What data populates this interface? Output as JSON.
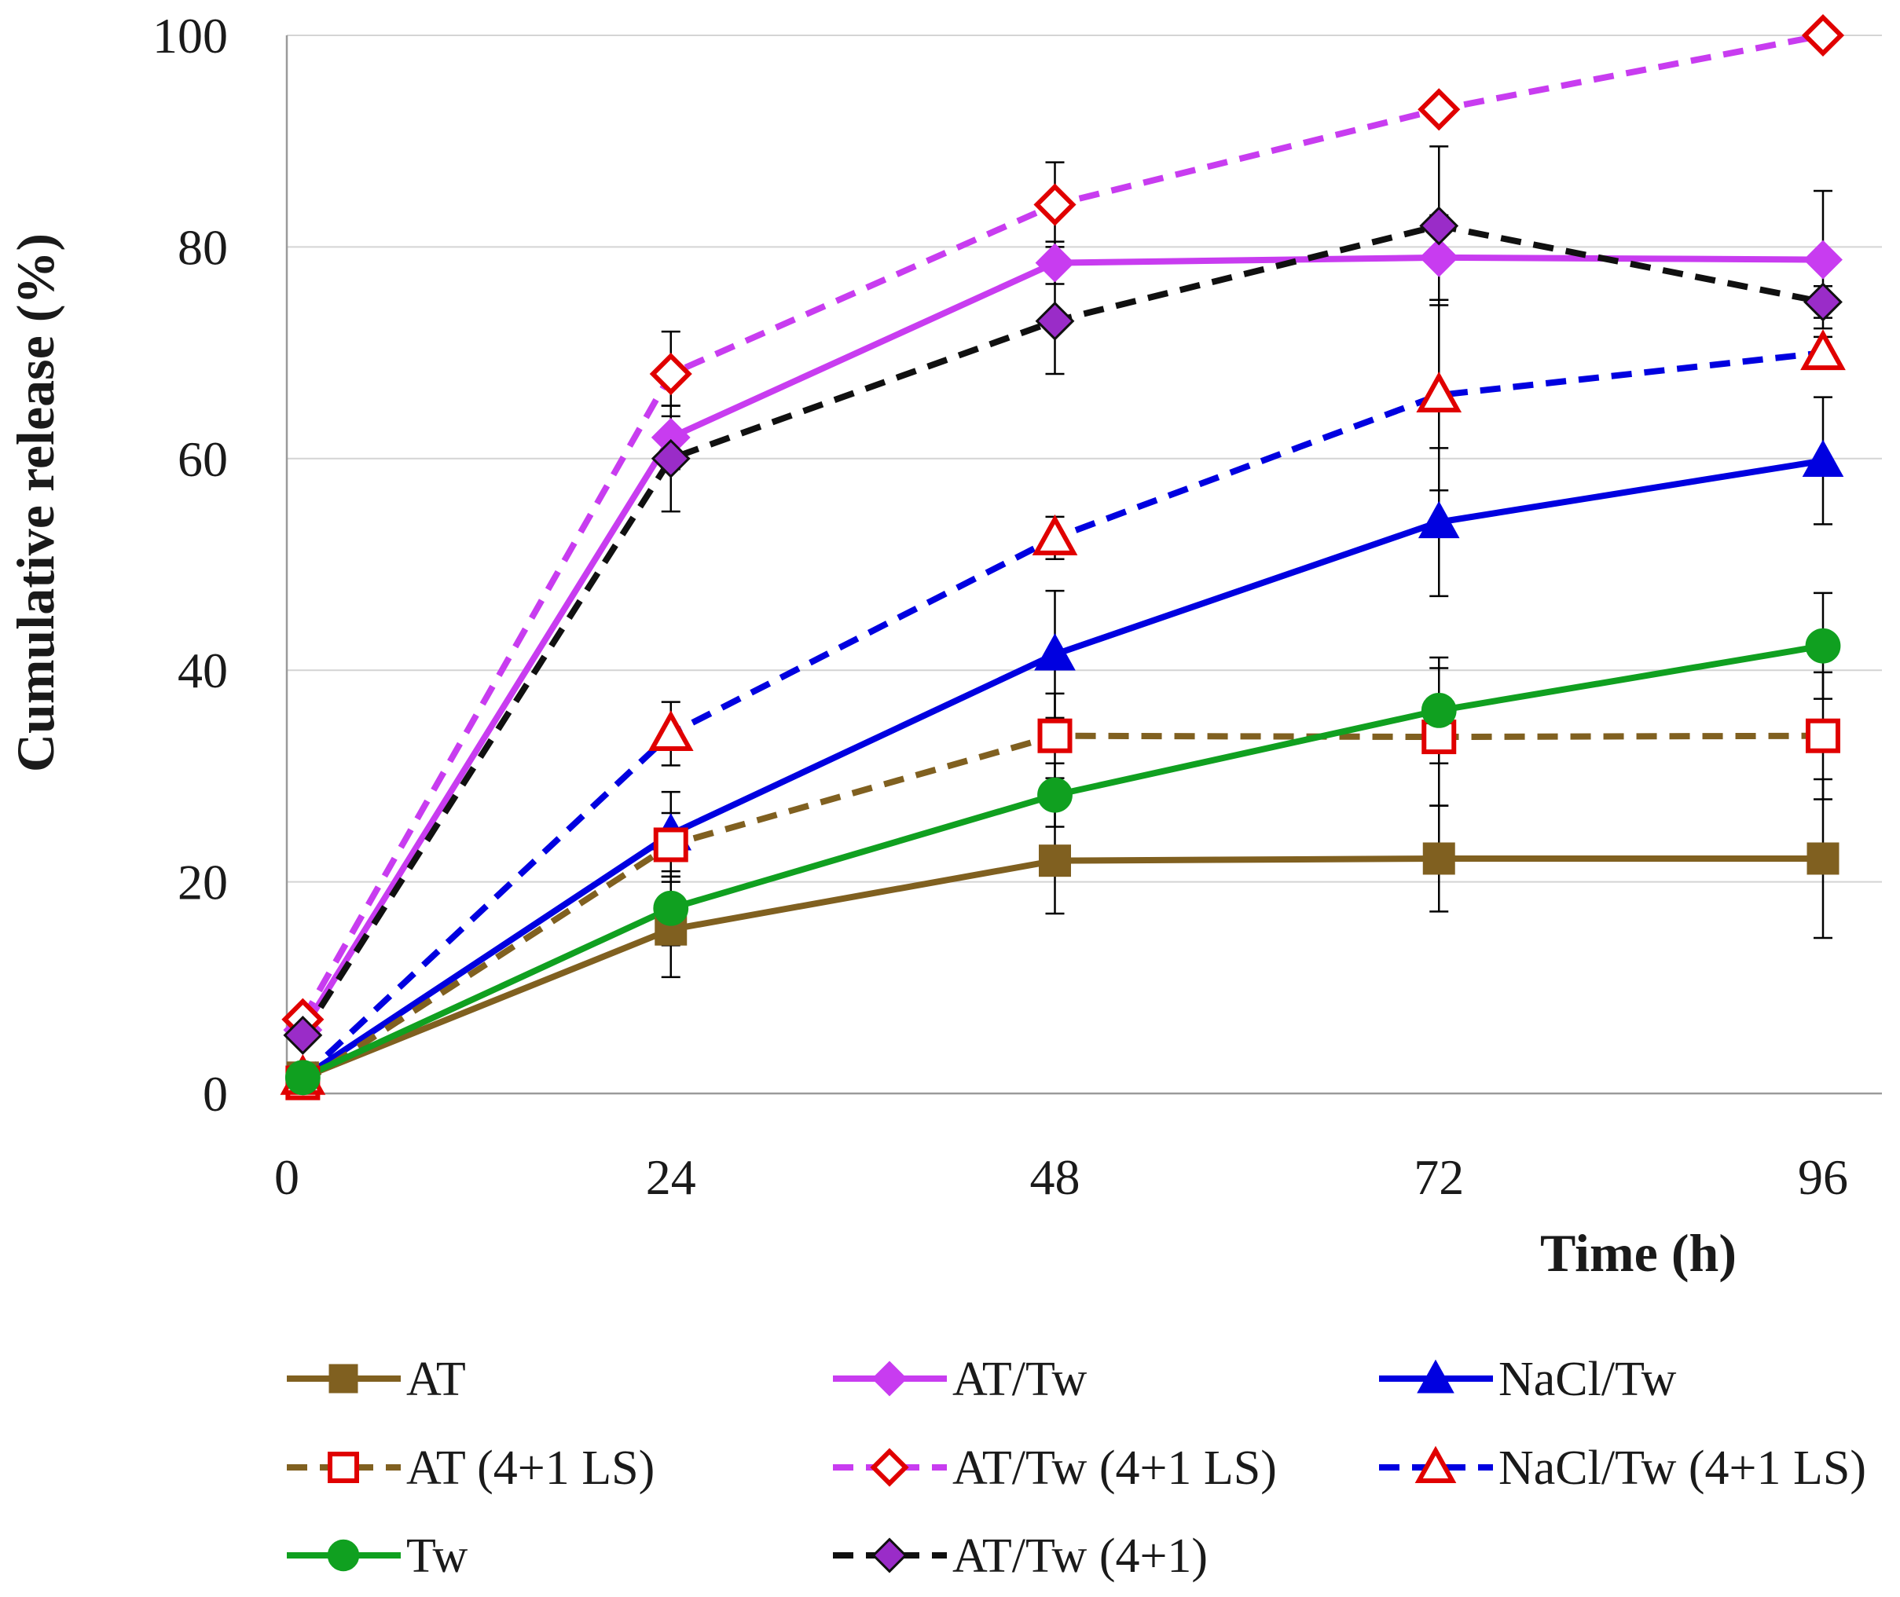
{
  "chart_data": {
    "type": "line",
    "title": "",
    "xlabel": "Time (h)",
    "ylabel": "Cumulative release (%)",
    "x": [
      1,
      24,
      48,
      72,
      96
    ],
    "x_ticks": [
      0,
      24,
      48,
      72,
      96
    ],
    "y_ticks": [
      0,
      20,
      40,
      60,
      80,
      100
    ],
    "xlim": [
      0,
      96
    ],
    "ylim": [
      0,
      100
    ],
    "grid": "horizontal",
    "legend_position": "bottom",
    "series": [
      {
        "name": "AT",
        "values": [
          1.5,
          15.5,
          22,
          22.2,
          22.2
        ],
        "errors": [
          0,
          4.5,
          5,
          5,
          7.5
        ],
        "color": "#806020",
        "dash": "solid",
        "marker": "square",
        "marker_fill": "#806020",
        "marker_stroke": "#806020"
      },
      {
        "name": "AT/Tw",
        "values": [
          6,
          62,
          78.5,
          79,
          78.8
        ],
        "errors": [
          0,
          3,
          2,
          4,
          6.5
        ],
        "color": "#c83cf0",
        "dash": "solid",
        "marker": "diamond",
        "marker_fill": "#c83cf0",
        "marker_stroke": "#c83cf0"
      },
      {
        "name": "NaCl/Tw",
        "values": [
          1.5,
          24.5,
          41.5,
          54,
          59.8
        ],
        "errors": [
          0,
          4,
          6,
          7,
          6
        ],
        "color": "#0000e0",
        "dash": "solid",
        "marker": "triangle",
        "marker_fill": "#0000e0",
        "marker_stroke": "#0000e0"
      },
      {
        "name": "AT (4+1 LS)",
        "values": [
          1,
          23.5,
          33.8,
          33.7,
          33.8
        ],
        "errors": [
          0,
          3,
          4,
          6.5,
          6
        ],
        "color": "#806020",
        "dash": "dashed",
        "marker": "square",
        "marker_fill": "#ffffff",
        "marker_stroke": "#e00000"
      },
      {
        "name": "AT/Tw (4+1 LS)",
        "values": [
          7,
          68,
          84,
          93,
          100
        ],
        "errors": [
          0,
          4,
          4,
          0,
          1
        ],
        "color": "#c83cf0",
        "dash": "dashed",
        "marker": "diamond",
        "marker_fill": "#ffffff",
        "marker_stroke": "#e00000"
      },
      {
        "name": "NaCl/Tw (4+1 LS)",
        "values": [
          1.5,
          34,
          52.5,
          66,
          70
        ],
        "errors": [
          0,
          3,
          2,
          9,
          1.5
        ],
        "color": "#0000e0",
        "dash": "dashed",
        "marker": "triangle",
        "marker_fill": "#ffffff",
        "marker_stroke": "#e00000"
      },
      {
        "name": "Tw",
        "values": [
          1.5,
          17.5,
          28.2,
          36.2,
          42.3
        ],
        "errors": [
          0,
          3.5,
          3,
          5,
          5
        ],
        "color": "#10a020",
        "dash": "solid",
        "marker": "circle",
        "marker_fill": "#10a020",
        "marker_stroke": "#10a020"
      },
      {
        "name": "AT/Tw (4+1)",
        "values": [
          5.5,
          60,
          73,
          82,
          74.8
        ],
        "errors": [
          0,
          5,
          5,
          7.5,
          1.5
        ],
        "color": "#101010",
        "dash": "dashed",
        "marker": "diamond",
        "marker_fill": "#9a2cc8",
        "marker_stroke": "#101010"
      }
    ]
  }
}
